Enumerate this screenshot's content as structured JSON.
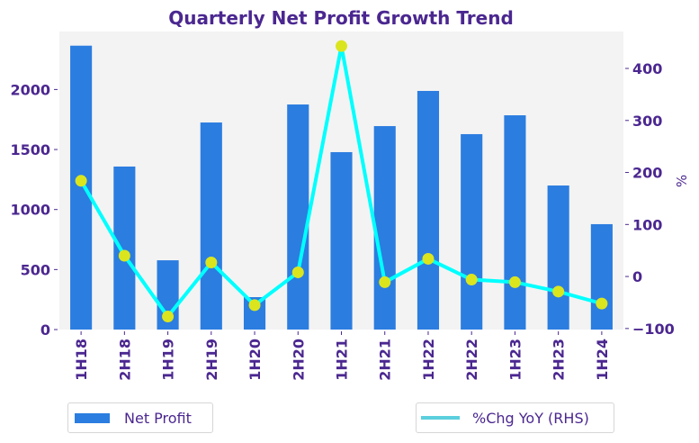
{
  "chart_data": {
    "type": "bar+line",
    "title": "Quarterly Net Profit Growth Trend",
    "categories": [
      "1H18",
      "2H18",
      "1H19",
      "2H19",
      "1H20",
      "2H20",
      "1H21",
      "2H21",
      "1H22",
      "2H22",
      "1H23",
      "2H23",
      "1H24"
    ],
    "series": [
      {
        "name": "Net Profit",
        "type": "bar",
        "axis": "left",
        "color": "#2b7de0",
        "values": [
          2365,
          1358,
          577,
          1725,
          270,
          1875,
          1478,
          1695,
          1988,
          1628,
          1785,
          1200,
          878
        ]
      },
      {
        "name": "%Chg YoY (RHS)",
        "type": "line",
        "axis": "right",
        "color": "#00ffff",
        "legend_color": "#5bcfde",
        "marker_color": "#dbe51e",
        "values": [
          184,
          40,
          -77,
          27,
          -55,
          8,
          443,
          -11,
          34,
          -6,
          -11,
          -29,
          -52
        ]
      }
    ],
    "left_axis": {
      "label": "",
      "ylim": [
        0,
        2483
      ],
      "ticks": [
        0,
        500,
        1000,
        1500,
        2000
      ]
    },
    "right_axis": {
      "label": "%",
      "ylim": [
        -102,
        471
      ],
      "ticks": [
        -100,
        0,
        100,
        200,
        300,
        400
      ],
      "tick_labels": [
        "−100",
        "0",
        "100",
        "200",
        "300",
        "400"
      ]
    },
    "xlabel": "",
    "grid": false,
    "plot_background": "#f3f3f3",
    "text_color": "#4b2790",
    "legend": [
      "Net Profit",
      "%Chg YoY (RHS)"
    ],
    "legend_placement": "bottom"
  }
}
